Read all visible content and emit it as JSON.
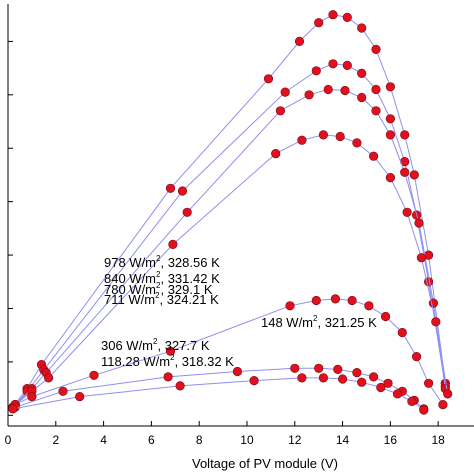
{
  "chart_data": {
    "type": "scatter",
    "xlabel": "Voltage of PV module (V)",
    "ylabel": "",
    "xlim": [
      0,
      19.5
    ],
    "ylim": [
      -0.2,
      7.7
    ],
    "x_ticks": [
      0,
      2,
      4,
      6,
      8,
      10,
      12,
      14,
      16,
      18
    ],
    "x_tick_labels": [
      "0",
      "2",
      "4",
      "6",
      "8",
      "10",
      "12",
      "14",
      "16",
      "18"
    ],
    "y_ticks": [
      0,
      1,
      2,
      3,
      4,
      5,
      6,
      7
    ],
    "grid": false,
    "marker_color": "#e0101e",
    "line_color": "#8f8fef",
    "series": [
      {
        "label": "978 W/m², 328.56 K",
        "x": [
          0.2,
          0.8,
          1.4,
          6.8,
          10.9,
          12.2,
          13.0,
          13.6,
          14.2,
          14.8,
          15.4,
          16.0,
          16.6,
          17.0,
          17.6,
          18.3
        ],
        "y": [
          0.15,
          0.5,
          0.95,
          4.25,
          6.3,
          7.0,
          7.35,
          7.5,
          7.45,
          7.25,
          6.85,
          6.15,
          5.25,
          4.5,
          3.0,
          0.6
        ]
      },
      {
        "label": "840 W/m², 331.42 K",
        "x": [
          0.2,
          0.8,
          1.5,
          7.3,
          11.6,
          12.9,
          13.6,
          14.2,
          14.8,
          15.4,
          16.0,
          16.6,
          17.1,
          17.6,
          18.3
        ],
        "y": [
          0.15,
          0.45,
          0.85,
          4.2,
          6.05,
          6.45,
          6.58,
          6.55,
          6.4,
          6.1,
          5.55,
          4.75,
          3.75,
          2.5,
          0.55
        ]
      },
      {
        "label": "780 W/m², 329.1 K",
        "x": [
          0.3,
          1.0,
          1.6,
          7.5,
          11.4,
          12.6,
          13.4,
          14.1,
          14.8,
          15.4,
          16.0,
          16.6,
          17.2,
          17.8,
          18.3
        ],
        "y": [
          0.2,
          0.5,
          0.8,
          3.8,
          5.7,
          6.0,
          6.1,
          6.08,
          5.95,
          5.7,
          5.25,
          4.55,
          3.6,
          2.1,
          0.5
        ]
      },
      {
        "label": "711 W/m², 324.21 K",
        "x": [
          0.3,
          1.0,
          1.7,
          6.9,
          11.2,
          12.3,
          13.2,
          13.9,
          14.6,
          15.3,
          16.0,
          16.7,
          17.3,
          17.9,
          18.4
        ],
        "y": [
          0.2,
          0.45,
          0.7,
          3.2,
          4.9,
          5.15,
          5.25,
          5.22,
          5.1,
          4.85,
          4.45,
          3.8,
          2.95,
          1.75,
          0.4
        ]
      },
      {
        "label": "306 W/m², 327.7 K",
        "x": [
          0.3,
          1.0,
          3.6,
          6.8,
          11.8,
          12.9,
          13.7,
          14.4,
          15.1,
          15.8,
          16.5,
          17.1,
          17.6,
          18.2
        ],
        "y": [
          0.2,
          0.35,
          0.75,
          1.2,
          2.05,
          2.15,
          2.18,
          2.15,
          2.05,
          1.85,
          1.55,
          1.1,
          0.6,
          0.2
        ]
      },
      {
        "label": "148 W/m², 321.25 K",
        "x": [
          0.3,
          2.3,
          6.7,
          9.6,
          12.0,
          13.0,
          13.8,
          14.6,
          15.3,
          15.9,
          16.5,
          17.0,
          17.4
        ],
        "y": [
          0.15,
          0.45,
          0.72,
          0.82,
          0.88,
          0.88,
          0.86,
          0.8,
          0.72,
          0.6,
          0.45,
          0.28,
          0.12
        ]
      },
      {
        "label": "118.28 W/m², 318.32 K",
        "x": [
          0.2,
          3.0,
          7.2,
          10.3,
          12.3,
          13.2,
          14.0,
          14.8,
          15.6,
          16.3,
          16.9,
          17.4
        ],
        "y": [
          0.12,
          0.35,
          0.55,
          0.65,
          0.7,
          0.7,
          0.68,
          0.62,
          0.52,
          0.4,
          0.26,
          0.1
        ]
      }
    ]
  },
  "annotations": [
    {
      "prefix": "978 W/m",
      "sup": "2",
      "suffix": ", 328.56 K"
    },
    {
      "prefix": "840 W/m",
      "sup": "2",
      "suffix": ", 331.42 K"
    },
    {
      "prefix": "780 W/m",
      "sup": "2",
      "suffix": ", 329.1 K"
    },
    {
      "prefix": "711 W/m",
      "sup": "2",
      "suffix": ", 324.21 K"
    },
    {
      "prefix": "148 W/m",
      "sup": "2",
      "suffix": ", 321.25 K"
    },
    {
      "prefix": "306 W/m",
      "sup": "2",
      "suffix": ", 327.7 K"
    },
    {
      "prefix": "118.28 W/m",
      "sup": "2",
      "suffix": ", 318.32 K"
    }
  ]
}
